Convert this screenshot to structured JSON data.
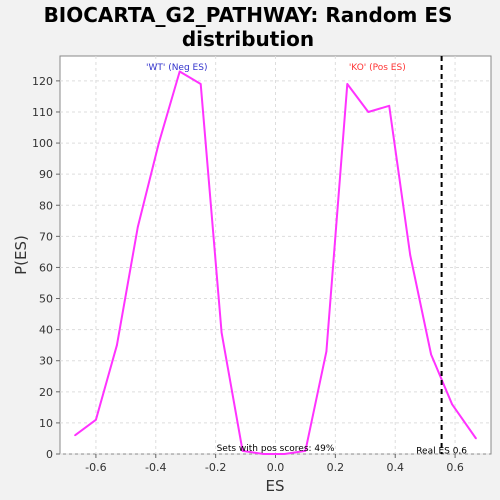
{
  "chart_data": {
    "type": "line",
    "title_line1": "BIOCARTA_G2_PATHWAY: Random ES",
    "title_line2": "distribution",
    "xlabel": "ES",
    "ylabel": "P(ES)",
    "xlim": [
      -0.72,
      0.72
    ],
    "ylim": [
      0,
      128
    ],
    "x_ticks": [
      -0.6,
      -0.4,
      -0.2,
      0.0,
      0.2,
      0.4,
      0.6
    ],
    "x_tick_labels": [
      "-0.6",
      "-0.4",
      "-0.2",
      "0.0",
      "0.2",
      "0.4",
      "0.6"
    ],
    "y_ticks": [
      0,
      10,
      20,
      30,
      40,
      50,
      60,
      70,
      80,
      90,
      100,
      110,
      120
    ],
    "y_tick_labels": [
      "0",
      "10",
      "20",
      "30",
      "40",
      "50",
      "60",
      "70",
      "80",
      "90",
      "100",
      "110",
      "120"
    ],
    "grid": true,
    "series": [
      {
        "color": "#ff33ff",
        "x": [
          -0.67,
          -0.6,
          -0.53,
          -0.46,
          -0.39,
          -0.32,
          -0.25,
          -0.18,
          -0.11,
          -0.04,
          0.03,
          0.1,
          0.17,
          0.24,
          0.31,
          0.38,
          0.45,
          0.52,
          0.59,
          0.67
        ],
        "y": [
          6,
          11,
          35,
          73,
          100,
          123,
          119,
          39,
          1,
          0,
          0,
          1,
          33,
          119,
          110,
          112,
          64,
          32,
          16,
          5
        ]
      }
    ],
    "real_es": 0.555,
    "annotations": {
      "neg_label": "'WT' (Neg ES)",
      "neg_color": "#3333cc",
      "neg_x": -0.33,
      "pos_label": "'KO' (Pos ES)",
      "pos_color": "#ff3333",
      "pos_x": 0.34,
      "sets_text": "Sets with pos scores: 49%",
      "sets_x": 0.0,
      "real_es_text": "Real ES 0.6",
      "real_es_text_x": 0.555
    }
  }
}
